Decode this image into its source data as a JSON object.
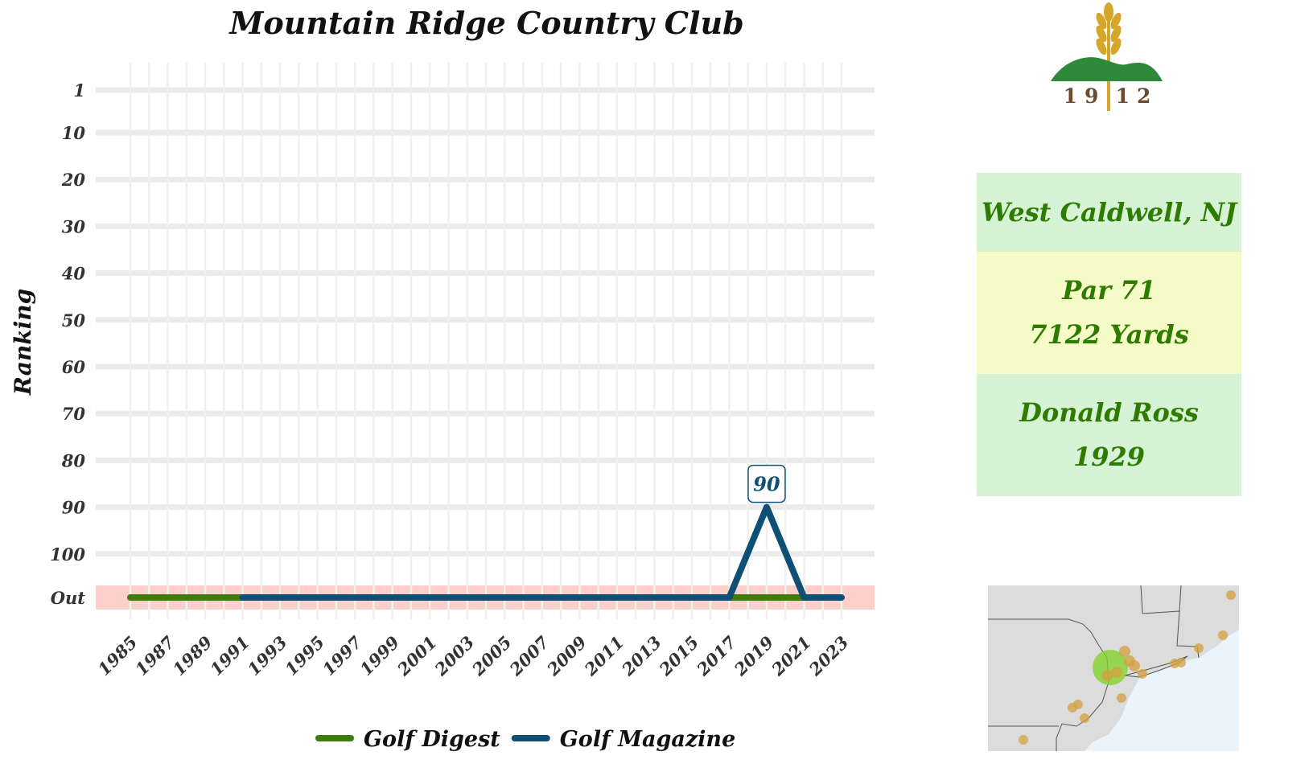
{
  "chart_data": {
    "type": "line",
    "title": "Mountain Ridge Country Club",
    "ylabel": "Ranking",
    "xlabel": "",
    "x_ticks": [
      "1985",
      "1987",
      "1989",
      "1991",
      "1993",
      "1995",
      "1997",
      "1999",
      "2001",
      "2003",
      "2005",
      "2007",
      "2009",
      "2011",
      "2013",
      "2015",
      "2017",
      "2019",
      "2021",
      "2023"
    ],
    "y_ticks": [
      "1",
      "10",
      "20",
      "30",
      "40",
      "50",
      "60",
      "70",
      "80",
      "90",
      "100",
      "Out"
    ],
    "out_label": "Out",
    "xlim": [
      1985,
      2023
    ],
    "grid": true,
    "legend_position": "bottom",
    "series": [
      {
        "name": "Golf Digest",
        "color": "#3c7d0e",
        "points": [
          [
            1985,
            "Out"
          ],
          [
            1991,
            "Out"
          ],
          [
            2017,
            "Out"
          ],
          [
            2021,
            "Out"
          ]
        ]
      },
      {
        "name": "Golf Magazine",
        "color": "#0d5074",
        "points": [
          [
            1991,
            "Out"
          ],
          [
            2017,
            "Out"
          ],
          [
            2019,
            90
          ],
          [
            2021,
            "Out"
          ],
          [
            2023,
            "Out"
          ]
        ]
      }
    ],
    "annotations": [
      {
        "x": 2019,
        "y": 90,
        "text": "90",
        "series": "Golf Magazine"
      }
    ],
    "out_band_color": "#fccfcb"
  },
  "logo": {
    "year_left": "19",
    "year_right": "12",
    "colors": {
      "wheat": "#d4a72c",
      "hill": "#2e8a3a",
      "text": "#6b4a2e"
    }
  },
  "info": {
    "location": "West Caldwell, NJ",
    "par": "Par 71",
    "yards": "7122 Yards",
    "architect": "Donald Ross",
    "year": "1929"
  },
  "map": {
    "land_color": "#dcdcdc",
    "water_color": "#eaf4fc",
    "highlight_color": "#7ed321",
    "dot_color": "#d4a040"
  }
}
